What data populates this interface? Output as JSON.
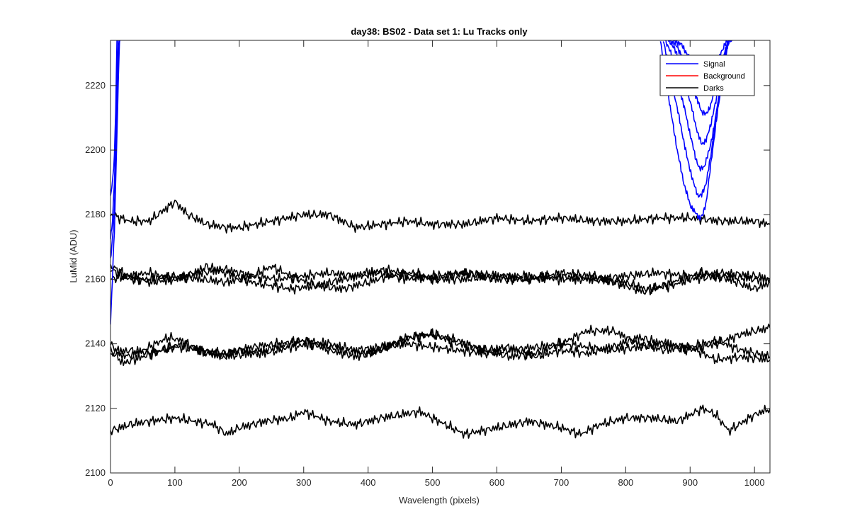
{
  "chart_data": {
    "type": "line",
    "title": "day38: BS02 - Data set 1: Lu Tracks only",
    "xlabel": "Wavelength (pixels)",
    "ylabel": "LuMid (ADU)",
    "xlim": [
      0,
      1024
    ],
    "ylim": [
      2100,
      2234
    ],
    "x_ticks": [
      0,
      100,
      200,
      300,
      400,
      500,
      600,
      700,
      800,
      900,
      1000
    ],
    "y_ticks": [
      2100,
      2120,
      2140,
      2160,
      2180,
      2200,
      2220
    ],
    "grid": false,
    "legend_position": "top-right",
    "legend": [
      {
        "name": "Signal",
        "color": "#0000ff"
      },
      {
        "name": "Background",
        "color": "#ff0000"
      },
      {
        "name": "Darks",
        "color": "#000000"
      }
    ],
    "series": [
      {
        "group": "Signal",
        "color": "#0000ff",
        "x": [
          0,
          3,
          6,
          8,
          10,
          12,
          14,
          16
        ],
        "y": [
          2146,
          2160,
          2175,
          2190,
          2205,
          2220,
          2234,
          2234
        ]
      },
      {
        "group": "Signal",
        "color": "#0000ff",
        "x": [
          0,
          3,
          6,
          8,
          10,
          12,
          14
        ],
        "y": [
          2166,
          2172,
          2182,
          2196,
          2212,
          2228,
          2234
        ]
      },
      {
        "group": "Signal",
        "color": "#0000ff",
        "x": [
          0,
          3,
          6,
          8,
          10,
          12
        ],
        "y": [
          2172,
          2178,
          2190,
          2205,
          2222,
          2234
        ]
      },
      {
        "group": "Signal",
        "color": "#0000ff",
        "x": [
          0,
          3,
          6,
          8,
          10
        ],
        "y": [
          2186,
          2190,
          2198,
          2212,
          2234
        ]
      },
      {
        "group": "Signal",
        "color": "#0000ff",
        "x": [
          854,
          860,
          870,
          880,
          890,
          900,
          910,
          915,
          920,
          925,
          930,
          940,
          950,
          955,
          960,
          965
        ],
        "y": [
          2234,
          2226,
          2212,
          2200,
          2190,
          2183,
          2180,
          2179,
          2180,
          2184,
          2192,
          2208,
          2222,
          2230,
          2234,
          2234
        ]
      },
      {
        "group": "Signal",
        "color": "#0000ff",
        "x": [
          858,
          865,
          875,
          885,
          895,
          905,
          912,
          918,
          925,
          932,
          940,
          948,
          955,
          960
        ],
        "y": [
          2234,
          2228,
          2218,
          2208,
          2198,
          2190,
          2186,
          2186,
          2190,
          2198,
          2210,
          2222,
          2230,
          2234
        ]
      },
      {
        "group": "Signal",
        "color": "#0000ff",
        "x": [
          862,
          870,
          880,
          890,
          900,
          908,
          915,
          922,
          930,
          938,
          946,
          954,
          960
        ],
        "y": [
          2234,
          2230,
          2222,
          2214,
          2205,
          2198,
          2194,
          2195,
          2200,
          2208,
          2218,
          2228,
          2234
        ]
      },
      {
        "group": "Signal",
        "color": "#0000ff",
        "x": [
          866,
          875,
          885,
          895,
          905,
          912,
          918,
          925,
          932,
          940,
          948,
          956,
          962
        ],
        "y": [
          2234,
          2232,
          2226,
          2219,
          2211,
          2205,
          2202,
          2203,
          2208,
          2215,
          2224,
          2232,
          2234
        ]
      },
      {
        "group": "Signal",
        "color": "#0000ff",
        "x": [
          870,
          880,
          890,
          900,
          910,
          918,
          925,
          932,
          940,
          948,
          956,
          963
        ],
        "y": [
          2234,
          2232,
          2228,
          2222,
          2216,
          2212,
          2211,
          2214,
          2220,
          2227,
          2232,
          2234
        ]
      },
      {
        "group": "Signal",
        "color": "#0000ff",
        "x": [
          874,
          885,
          895,
          905,
          915,
          922,
          930,
          938,
          946,
          954,
          962
        ],
        "y": [
          2234,
          2233,
          2230,
          2226,
          2222,
          2220,
          2220,
          2224,
          2229,
          2233,
          2234
        ]
      },
      {
        "group": "Darks",
        "color": "#000000",
        "x": [
          0,
          30,
          60,
          80,
          100,
          120,
          150,
          180,
          200,
          250,
          300,
          340,
          380,
          420,
          460,
          500,
          550,
          600,
          650,
          700,
          750,
          800,
          850,
          900,
          950,
          1000,
          1024
        ],
        "y": [
          2180,
          2178,
          2178,
          2181,
          2184,
          2180,
          2177,
          2176,
          2176,
          2178,
          2180,
          2180,
          2176,
          2177,
          2178,
          2177,
          2177,
          2179,
          2178,
          2179,
          2178,
          2178,
          2179,
          2179,
          2178,
          2178,
          2177
        ]
      },
      {
        "group": "Darks",
        "color": "#000000",
        "x": [
          0,
          30,
          60,
          100,
          130,
          150,
          180,
          220,
          250,
          280,
          320,
          360,
          400,
          430,
          470,
          500,
          550,
          600,
          650,
          700,
          750,
          800,
          830,
          870,
          900,
          950,
          1000,
          1024
        ],
        "y": [
          2164,
          2161,
          2159,
          2160,
          2162,
          2164,
          2162,
          2159,
          2158,
          2157,
          2158,
          2160,
          2162,
          2163,
          2161,
          2160,
          2160,
          2161,
          2160,
          2161,
          2160,
          2159,
          2157,
          2158,
          2160,
          2161,
          2160,
          2160
        ]
      },
      {
        "group": "Darks",
        "color": "#000000",
        "x": [
          0,
          30,
          60,
          100,
          140,
          180,
          220,
          250,
          280,
          320,
          360,
          400,
          430,
          470,
          500,
          550,
          600,
          650,
          700,
          750,
          800,
          830,
          870,
          920,
          960,
          1000,
          1024
        ],
        "y": [
          2163,
          2160,
          2160,
          2161,
          2160,
          2159,
          2161,
          2164,
          2161,
          2158,
          2157,
          2159,
          2161,
          2162,
          2160,
          2162,
          2160,
          2160,
          2162,
          2161,
          2158,
          2156,
          2159,
          2162,
          2160,
          2157,
          2159
        ]
      },
      {
        "group": "Darks",
        "color": "#000000",
        "x": [
          0,
          30,
          60,
          100,
          140,
          180,
          220,
          260,
          300,
          340,
          380,
          420,
          460,
          500,
          550,
          600,
          650,
          700,
          750,
          800,
          850,
          900,
          950,
          1000,
          1024
        ],
        "y": [
          2160,
          2161,
          2162,
          2160,
          2162,
          2163,
          2161,
          2160,
          2161,
          2162,
          2161,
          2162,
          2160,
          2161,
          2162,
          2161,
          2161,
          2160,
          2160,
          2161,
          2162,
          2161,
          2162,
          2161,
          2160
        ]
      },
      {
        "group": "Darks",
        "color": "#000000",
        "x": [
          0,
          20,
          40,
          60,
          90,
          110,
          140,
          170,
          200,
          240,
          280,
          320,
          360,
          400,
          440,
          470,
          500,
          540,
          580,
          620,
          660,
          700,
          740,
          780,
          820,
          860,
          900,
          940,
          980,
          1024
        ],
        "y": [
          2140,
          2136,
          2137,
          2139,
          2142,
          2141,
          2138,
          2136,
          2138,
          2137,
          2139,
          2140,
          2138,
          2137,
          2140,
          2142,
          2143,
          2140,
          2138,
          2139,
          2136,
          2138,
          2137,
          2139,
          2142,
          2140,
          2138,
          2140,
          2143,
          2145
        ]
      },
      {
        "group": "Darks",
        "color": "#000000",
        "x": [
          0,
          20,
          50,
          80,
          110,
          140,
          180,
          220,
          260,
          300,
          340,
          380,
          420,
          460,
          500,
          540,
          580,
          620,
          660,
          700,
          740,
          780,
          820,
          860,
          900,
          940,
          980,
          1024
        ],
        "y": [
          2138,
          2134,
          2136,
          2138,
          2140,
          2138,
          2137,
          2139,
          2140,
          2141,
          2138,
          2136,
          2138,
          2142,
          2143,
          2141,
          2138,
          2136,
          2137,
          2140,
          2144,
          2144,
          2140,
          2138,
          2139,
          2141,
          2138,
          2136
        ]
      },
      {
        "group": "Darks",
        "color": "#000000",
        "x": [
          0,
          30,
          60,
          100,
          140,
          180,
          220,
          260,
          300,
          340,
          380,
          420,
          460,
          500,
          540,
          580,
          620,
          660,
          700,
          740,
          780,
          820,
          860,
          900,
          940,
          980,
          1024
        ],
        "y": [
          2137,
          2138,
          2137,
          2139,
          2138,
          2136,
          2137,
          2139,
          2141,
          2140,
          2138,
          2139,
          2140,
          2139,
          2138,
          2137,
          2138,
          2139,
          2140,
          2139,
          2138,
          2139,
          2140,
          2139,
          2135,
          2136,
          2135
        ]
      },
      {
        "group": "Darks",
        "color": "#000000",
        "x": [
          0,
          30,
          60,
          100,
          130,
          160,
          180,
          200,
          240,
          280,
          300,
          340,
          380,
          420,
          450,
          480,
          520,
          550,
          600,
          650,
          700,
          730,
          760,
          800,
          840,
          880,
          920,
          940,
          960,
          1000,
          1024
        ],
        "y": [
          2113,
          2115,
          2116,
          2117,
          2116,
          2115,
          2112,
          2114,
          2116,
          2117,
          2119,
          2116,
          2115,
          2117,
          2118,
          2119,
          2115,
          2112,
          2114,
          2116,
          2114,
          2112,
          2115,
          2117,
          2117,
          2116,
          2120,
          2118,
          2113,
          2118,
          2120
        ]
      }
    ]
  }
}
